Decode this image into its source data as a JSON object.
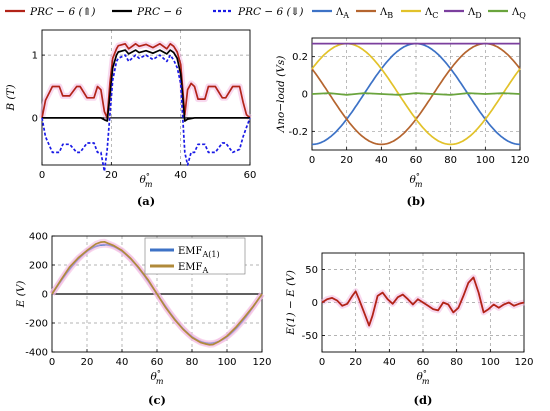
{
  "colors": {
    "red": "#b22318",
    "black": "#000000",
    "blue": "#1a1ae6",
    "A": "#3d72c6",
    "B": "#b5652f",
    "C": "#e2c22a",
    "D": "#7b3f9e",
    "Q": "#6aa43d",
    "emfA": "#b08a3a",
    "emfA1": "#3d72c6",
    "diff": "#b22318",
    "glow": "#f2b8e0"
  },
  "legends": {
    "a": [
      "PRC − 6 (⇑)",
      "PRC − 6",
      "PRC − 6 (⇓)"
    ],
    "b": [
      "Λ_A",
      "Λ_B",
      "Λ_C",
      "Λ_D",
      "Λ_Q"
    ],
    "c": [
      "EMF_A(1)",
      "EMF_A"
    ]
  },
  "chart_data": [
    {
      "id": "a",
      "caption": "(a)",
      "type": "line",
      "xlabel": "θ°m",
      "ylabel": "B (T)",
      "xlim": [
        0,
        60
      ],
      "ylim": [
        -0.75,
        1.4
      ],
      "xticks": [
        0,
        20,
        40,
        60
      ],
      "yticks": [
        0,
        1
      ],
      "grid": true,
      "legend": "top",
      "series": [
        {
          "name": "PRC − 6 (⇑)",
          "color": "red",
          "style": "solid",
          "x": [
            0,
            1,
            3,
            5,
            6,
            8,
            10,
            11,
            13,
            15,
            16,
            17,
            18,
            18.8,
            19.6,
            20.4,
            21.5,
            22,
            24,
            25,
            27,
            28,
            30,
            32,
            34,
            36,
            37,
            38,
            39,
            40,
            41.2,
            42,
            43,
            44,
            45,
            47,
            48,
            50,
            52,
            53,
            55,
            57,
            58,
            59,
            60
          ],
          "y": [
            0,
            0.28,
            0.5,
            0.5,
            0.35,
            0.35,
            0.5,
            0.5,
            0.32,
            0.32,
            0.5,
            0.45,
            0.1,
            0.0,
            0.55,
            0.95,
            1.1,
            1.15,
            1.18,
            1.1,
            1.18,
            1.14,
            1.17,
            1.12,
            1.18,
            1.1,
            1.18,
            1.14,
            1.05,
            0.85,
            0.05,
            0.45,
            0.55,
            0.5,
            0.3,
            0.3,
            0.5,
            0.5,
            0.32,
            0.32,
            0.5,
            0.5,
            0.25,
            0.05,
            0
          ]
        },
        {
          "name": "PRC − 6",
          "color": "black",
          "style": "solid",
          "x": [
            0,
            10,
            17,
            18,
            18.8,
            19.6,
            20.4,
            21.5,
            22,
            24,
            25,
            27,
            28,
            30,
            32,
            34,
            36,
            37,
            38,
            39,
            40,
            41.2,
            42,
            44,
            50,
            58,
            60
          ],
          "y": [
            0,
            0,
            0,
            -0.03,
            -0.05,
            0.35,
            0.8,
            1.0,
            1.05,
            1.08,
            1.02,
            1.08,
            1.04,
            1.07,
            1.03,
            1.08,
            1.02,
            1.08,
            1.04,
            0.95,
            0.7,
            -0.05,
            -0.02,
            0,
            0,
            0,
            0
          ]
        },
        {
          "name": "PRC − 6 (⇓)",
          "color": "blue",
          "style": "dashed",
          "x": [
            0,
            1,
            3,
            5,
            6,
            8,
            10,
            11,
            13,
            15,
            16,
            17,
            18,
            18.8,
            19.6,
            20.4,
            21.5,
            22,
            24,
            25,
            27,
            28,
            30,
            32,
            34,
            36,
            37,
            38,
            39,
            40,
            41.2,
            42,
            43,
            44,
            45,
            47,
            48,
            50,
            52,
            53,
            55,
            57,
            58,
            59,
            60
          ],
          "y": [
            0,
            -0.3,
            -0.55,
            -0.55,
            -0.42,
            -0.42,
            -0.55,
            -0.55,
            -0.4,
            -0.4,
            -0.55,
            -0.55,
            -0.85,
            -0.5,
            0.05,
            0.6,
            0.9,
            0.95,
            1.0,
            0.9,
            1.0,
            0.95,
            1.0,
            0.93,
            1.0,
            0.9,
            1.0,
            0.92,
            0.8,
            0.55,
            -0.55,
            -0.75,
            -0.55,
            -0.55,
            -0.42,
            -0.42,
            -0.55,
            -0.55,
            -0.4,
            -0.4,
            -0.55,
            -0.5,
            -0.3,
            -0.15,
            0
          ]
        }
      ]
    },
    {
      "id": "b",
      "caption": "(b)",
      "type": "line",
      "xlabel": "θ°m",
      "ylabel": "Λno−load (Vs)",
      "xlim": [
        0,
        120
      ],
      "ylim": [
        -0.3,
        0.3
      ],
      "xticks": [
        0,
        20,
        40,
        60,
        80,
        100,
        120
      ],
      "yticks": [
        -0.2,
        0,
        0.2
      ],
      "grid": true,
      "legend": "top",
      "series": [
        {
          "name": "Λ_A",
          "color": "A",
          "amp": 0.27,
          "phase_deg": 0
        },
        {
          "name": "Λ_B",
          "color": "B",
          "amp": 0.27,
          "phase_deg": 120
        },
        {
          "name": "Λ_C",
          "color": "C",
          "amp": 0.27,
          "phase_deg": 240
        },
        {
          "name": "Λ_D",
          "color": "D",
          "x": [
            0,
            120
          ],
          "y": [
            0.27,
            0.27
          ]
        },
        {
          "name": "Λ_Q",
          "color": "Q",
          "x": [
            0,
            10,
            20,
            30,
            40,
            50,
            60,
            70,
            80,
            90,
            100,
            110,
            120
          ],
          "y": [
            0,
            0.005,
            -0.005,
            0.005,
            0,
            -0.005,
            0.005,
            0,
            -0.005,
            0.005,
            0,
            0.005,
            0
          ]
        }
      ]
    },
    {
      "id": "c",
      "caption": "(c)",
      "type": "line",
      "xlabel": "θ°m",
      "ylabel": "E (V)",
      "xlim": [
        0,
        120
      ],
      "ylim": [
        -400,
        400
      ],
      "xticks": [
        0,
        20,
        40,
        60,
        80,
        100,
        120
      ],
      "yticks": [
        -400,
        -200,
        0,
        200,
        400
      ],
      "grid": true,
      "legend": "top-right",
      "series": [
        {
          "name": "EMF_A(1)",
          "color": "emfA1",
          "amp": 340,
          "period": 120
        },
        {
          "name": "EMF_A",
          "color": "emfA",
          "x": [
            0,
            5,
            10,
            15,
            20,
            25,
            28,
            30,
            32,
            35,
            40,
            45,
            50,
            55,
            60,
            65,
            70,
            75,
            80,
            85,
            88,
            90,
            92,
            95,
            100,
            105,
            110,
            115,
            120
          ],
          "y": [
            0,
            95,
            185,
            250,
            300,
            345,
            358,
            360,
            350,
            335,
            300,
            245,
            175,
            95,
            0,
            -95,
            -175,
            -245,
            -300,
            -335,
            -345,
            -350,
            -348,
            -330,
            -290,
            -230,
            -160,
            -85,
            0
          ]
        }
      ]
    },
    {
      "id": "d",
      "caption": "(d)",
      "type": "line",
      "xlabel": "θ°m",
      "ylabel": "E(1) − E (V)",
      "xlim": [
        0,
        120
      ],
      "ylim": [
        -75,
        75
      ],
      "xticks": [
        0,
        20,
        40,
        60,
        80,
        100,
        120
      ],
      "yticks": [
        -50,
        0,
        50
      ],
      "grid": true,
      "series": [
        {
          "name": "",
          "color": "diff",
          "x": [
            0,
            3,
            6,
            9,
            12,
            15,
            18,
            20,
            22,
            25,
            28,
            30,
            33,
            36,
            39,
            42,
            45,
            48,
            51,
            54,
            57,
            60,
            63,
            66,
            69,
            72,
            75,
            78,
            81,
            84,
            87,
            90,
            93,
            96,
            99,
            102,
            105,
            108,
            111,
            114,
            117,
            120
          ],
          "y": [
            0,
            5,
            7,
            3,
            -5,
            -2,
            10,
            17,
            5,
            -15,
            -35,
            -20,
            10,
            15,
            5,
            -2,
            8,
            12,
            5,
            -3,
            5,
            0,
            -5,
            -10,
            -12,
            0,
            -3,
            -15,
            -8,
            10,
            30,
            38,
            15,
            -15,
            -10,
            -3,
            -8,
            -3,
            0,
            -5,
            -2,
            0
          ]
        }
      ]
    }
  ]
}
